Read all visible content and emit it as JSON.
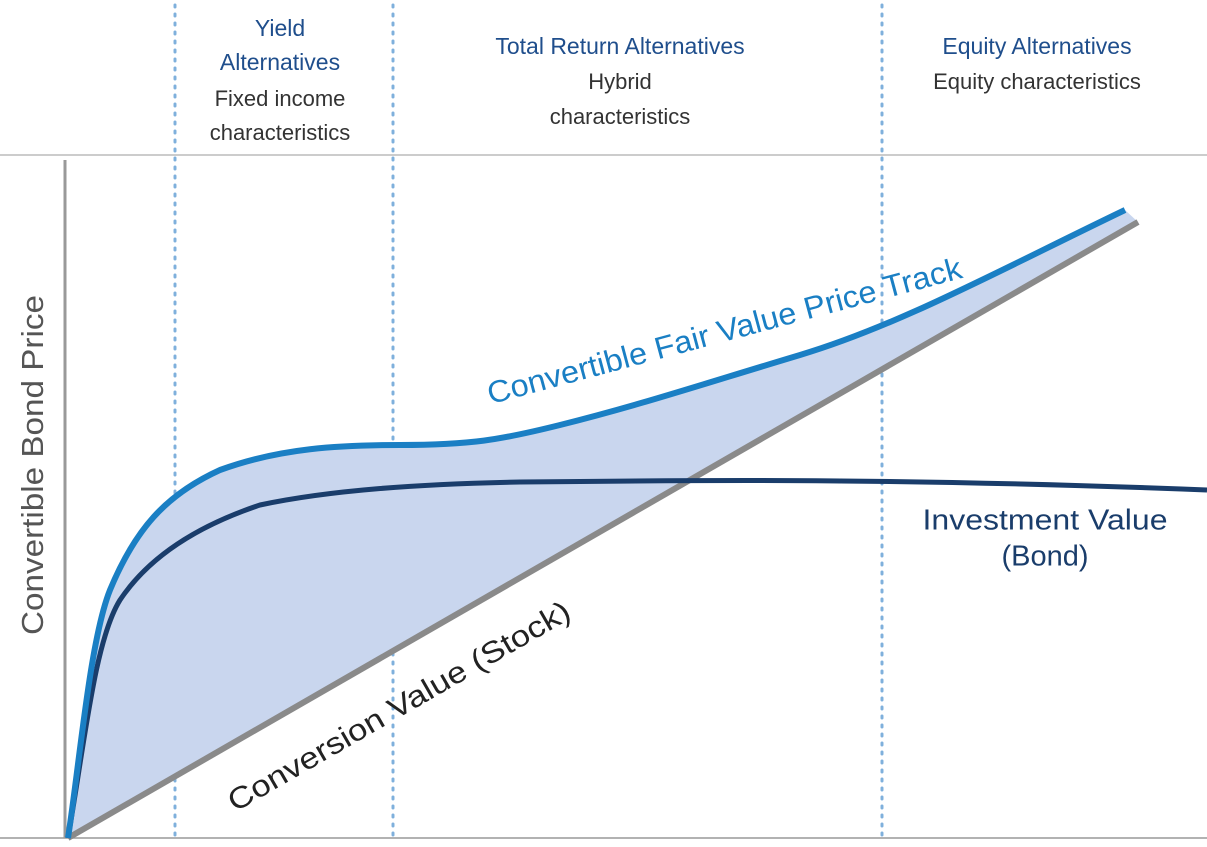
{
  "zones": [
    {
      "title": [
        "Yield",
        "Alternatives"
      ],
      "subtitle": [
        "Fixed income",
        "characteristics"
      ]
    },
    {
      "title": [
        "Total Return Alternatives"
      ],
      "subtitle": [
        "Hybrid",
        "characteristics"
      ]
    },
    {
      "title": [
        "Equity Alternatives"
      ],
      "subtitle": [
        "Equity characteristics"
      ]
    }
  ],
  "y_axis_label": "Convertible Bond Price",
  "curves": {
    "fair_value": "Convertible Fair Value Price Track",
    "investment_value": [
      "Investment Value",
      "(Bond)"
    ],
    "conversion_value": "Conversion Value (Stock)"
  }
}
